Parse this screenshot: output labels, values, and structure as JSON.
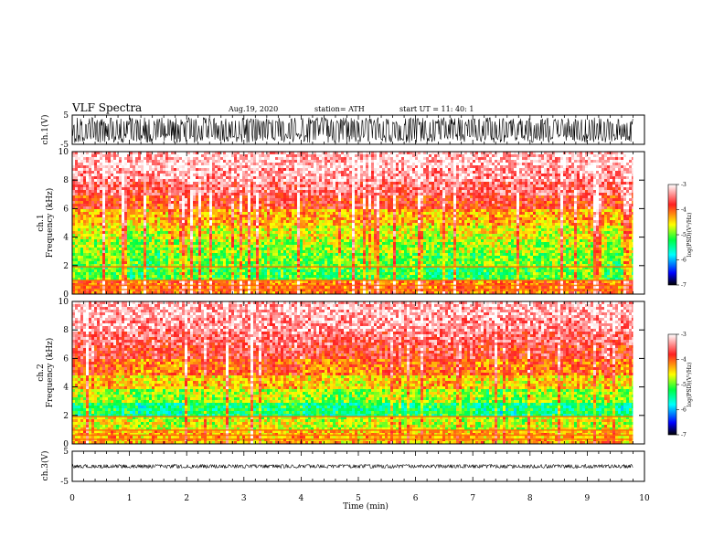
{
  "header": {
    "title": "VLF Spectra",
    "date": "Aug.19, 2020",
    "station": "station= ATH",
    "start": "start  UT =   11: 40: 1"
  },
  "panels": {
    "ch1_wave_ylabel": "ch.1(V)",
    "ch1_spec_ylabel": "ch.1\nFrequency (kHz)",
    "ch2_spec_ylabel": "ch.2\nFrequency (kHz)",
    "ch3_wave_ylabel": "ch.3(V)",
    "xlabel": "Time  (min)",
    "colorbar_label": "log(PSD)(V²/Hz)"
  },
  "colors": {
    "spectrogram_high": "#ff2a1e",
    "spectrogram_mid": "#ffff00",
    "spectrogram_low": "#00ff60",
    "spectrogram_min": "#0000c0",
    "waveform": "#000000"
  },
  "chart_data": [
    {
      "type": "line",
      "name": "ch.1 waveform",
      "ylabel": "ch.1(V)",
      "xlim": [
        0,
        10
      ],
      "ylim": [
        -5,
        5
      ],
      "yticks": [
        5,
        -5
      ],
      "x": [
        0,
        9.8
      ],
      "envelope_upper": [
        4.2,
        4.2
      ],
      "envelope_lower": [
        -4.5,
        -4.5
      ]
    },
    {
      "type": "heatmap",
      "name": "ch.1 spectrogram",
      "xlabel": "",
      "ylabel": "ch.1 Frequency (kHz)",
      "xlim": [
        0,
        10
      ],
      "ylim": [
        0,
        10
      ],
      "yticks": [
        0,
        2,
        4,
        6,
        8,
        10
      ],
      "time_min": [
        0,
        1,
        2,
        3,
        4,
        5,
        6,
        7,
        8,
        9,
        9.8
      ],
      "freq_khz": [
        0.5,
        1.5,
        2.5,
        3.5,
        4.5,
        5.5,
        6.5,
        7.5,
        8.5,
        9.5
      ],
      "log_psd": [
        [
          -4.2,
          -5.2,
          -5.1,
          -5.0,
          -4.8,
          -4.5,
          -4.0,
          -3.6,
          -3.4,
          -3.3
        ],
        [
          -4.3,
          -5.4,
          -5.3,
          -5.1,
          -4.9,
          -4.6,
          -4.1,
          -3.7,
          -3.4,
          -3.3
        ],
        [
          -4.2,
          -5.3,
          -5.2,
          -5.0,
          -4.8,
          -4.5,
          -4.0,
          -3.6,
          -3.4,
          -3.3
        ],
        [
          -4.3,
          -5.3,
          -5.1,
          -5.0,
          -4.7,
          -4.4,
          -3.9,
          -3.6,
          -3.4,
          -3.3
        ],
        [
          -4.2,
          -5.2,
          -5.1,
          -4.9,
          -4.7,
          -4.4,
          -3.9,
          -3.5,
          -3.3,
          -3.3
        ],
        [
          -4.3,
          -5.3,
          -5.2,
          -5.0,
          -4.8,
          -4.5,
          -4.0,
          -3.6,
          -3.4,
          -3.3
        ],
        [
          -4.2,
          -5.4,
          -5.2,
          -5.0,
          -4.8,
          -4.5,
          -4.0,
          -3.6,
          -3.4,
          -3.3
        ],
        [
          -4.3,
          -5.3,
          -5.1,
          -4.9,
          -4.7,
          -4.4,
          -3.9,
          -3.6,
          -3.4,
          -3.3
        ],
        [
          -4.2,
          -5.2,
          -5.1,
          -5.0,
          -4.8,
          -4.5,
          -4.0,
          -3.6,
          -3.4,
          -3.3
        ],
        [
          -4.3,
          -5.3,
          -5.2,
          -5.0,
          -4.8,
          -4.5,
          -4.0,
          -3.6,
          -3.4,
          -3.3
        ],
        [
          -4.2,
          -5.2,
          -5.1,
          -5.0,
          -4.8,
          -4.5,
          -4.0,
          -3.6,
          -3.4,
          -3.3
        ]
      ],
      "colorbar": {
        "label": "log(PSD)(V²/Hz)",
        "range": [
          -7,
          -3
        ],
        "ticks": [
          -3,
          -4,
          -5,
          -6,
          -7
        ]
      }
    },
    {
      "type": "heatmap",
      "name": "ch.2 spectrogram",
      "xlabel": "",
      "ylabel": "ch.2 Frequency (kHz)",
      "xlim": [
        0,
        10
      ],
      "ylim": [
        0,
        10
      ],
      "yticks": [
        0,
        2,
        4,
        6,
        8,
        10
      ],
      "time_min": [
        0,
        1,
        2,
        3,
        4,
        5,
        6,
        7,
        8,
        9,
        9.8
      ],
      "freq_khz": [
        0.5,
        1.5,
        2.5,
        3.5,
        4.5,
        5.5,
        6.5,
        7.5,
        8.5,
        9.5
      ],
      "log_psd": [
        [
          -4.5,
          -4.8,
          -5.5,
          -5.0,
          -4.6,
          -4.2,
          -3.9,
          -3.6,
          -3.4,
          -3.3
        ],
        [
          -4.5,
          -4.9,
          -5.6,
          -5.1,
          -4.7,
          -4.3,
          -3.9,
          -3.6,
          -3.4,
          -3.3
        ],
        [
          -4.5,
          -4.8,
          -5.5,
          -5.0,
          -4.6,
          -4.2,
          -3.9,
          -3.6,
          -3.4,
          -3.3
        ],
        [
          -4.5,
          -4.8,
          -5.4,
          -4.9,
          -4.5,
          -4.1,
          -3.8,
          -3.5,
          -3.4,
          -3.3
        ],
        [
          -4.5,
          -4.9,
          -5.6,
          -5.1,
          -4.7,
          -4.3,
          -3.9,
          -3.6,
          -3.4,
          -3.3
        ],
        [
          -4.5,
          -4.8,
          -5.5,
          -5.0,
          -4.6,
          -4.2,
          -3.9,
          -3.6,
          -3.4,
          -3.3
        ],
        [
          -4.5,
          -4.8,
          -5.4,
          -4.9,
          -4.5,
          -4.1,
          -3.8,
          -3.5,
          -3.4,
          -3.3
        ],
        [
          -4.5,
          -4.9,
          -5.6,
          -5.1,
          -4.7,
          -4.3,
          -3.9,
          -3.6,
          -3.4,
          -3.3
        ],
        [
          -4.5,
          -4.8,
          -5.5,
          -5.0,
          -4.6,
          -4.2,
          -3.9,
          -3.6,
          -3.4,
          -3.3
        ],
        [
          -4.5,
          -4.9,
          -5.6,
          -5.1,
          -4.7,
          -4.3,
          -3.9,
          -3.6,
          -3.4,
          -3.3
        ],
        [
          -4.5,
          -4.8,
          -5.5,
          -5.0,
          -4.6,
          -4.2,
          -3.9,
          -3.6,
          -3.4,
          -3.3
        ]
      ],
      "colorbar": {
        "label": "log(PSD)(V²/Hz)",
        "range": [
          -7,
          -3
        ],
        "ticks": [
          -3,
          -4,
          -5,
          -6,
          -7
        ]
      }
    },
    {
      "type": "line",
      "name": "ch.3 waveform",
      "ylabel": "ch.3(V)",
      "xlabel": "Time  (min)",
      "xlim": [
        0,
        10
      ],
      "ylim": [
        -5,
        5
      ],
      "yticks": [
        5,
        -5
      ],
      "xticks": [
        0,
        1,
        2,
        3,
        4,
        5,
        6,
        7,
        8,
        9,
        10
      ],
      "x": [
        0,
        9.8
      ],
      "envelope_upper": [
        0.6,
        0.6
      ],
      "envelope_lower": [
        -0.6,
        -0.6
      ]
    }
  ]
}
